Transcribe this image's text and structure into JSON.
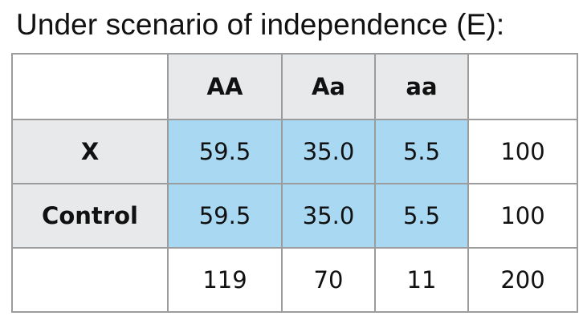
{
  "title": "Under scenario of independence (E):",
  "table": {
    "columns": [
      "AA",
      "Aa",
      "aa"
    ],
    "rows": [
      {
        "label": "X",
        "values": [
          "59.5",
          "35.0",
          "5.5"
        ],
        "total": "100"
      },
      {
        "label": "Control",
        "values": [
          "59.5",
          "35.0",
          "5.5"
        ],
        "total": "100"
      }
    ],
    "totals": {
      "values": [
        "119",
        "70",
        "11"
      ],
      "grand": "200"
    }
  },
  "colors": {
    "header_bg": "#e8e9ea",
    "highlight_bg": "#a9d8f3",
    "border": "#9c9c9c"
  }
}
